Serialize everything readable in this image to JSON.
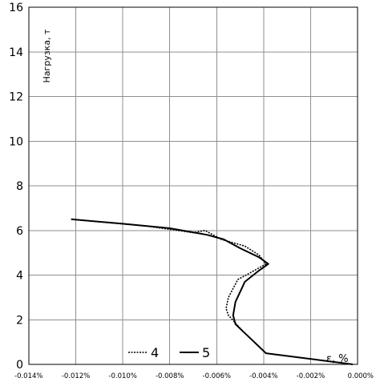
{
  "chart_data": {
    "type": "line",
    "ylabel": "Нагрузка, т",
    "xlabel": "ε, %",
    "xlim": [
      -0.014,
      0.0
    ],
    "ylim": [
      0,
      16
    ],
    "x_ticks": [
      -0.014,
      -0.012,
      -0.01,
      -0.008,
      -0.006,
      -0.004,
      -0.002,
      0.0
    ],
    "x_tick_labels": [
      "-0.014%",
      "-0.012%",
      "-0.010%",
      "-0.008%",
      "-0.006%",
      "-0.004%",
      "-0.002%",
      "0.000%"
    ],
    "y_ticks": [
      0,
      2,
      4,
      6,
      8,
      10,
      12,
      14,
      16
    ],
    "y_tick_labels": [
      "0",
      "2",
      "4",
      "6",
      "8",
      "10",
      "12",
      "14",
      "16"
    ],
    "grid": true,
    "legend_position": "bottom-center",
    "series": [
      {
        "name": "4",
        "style": "dotted",
        "color": "#000000",
        "points": [
          [
            -0.0002,
            0.0
          ],
          [
            -0.0039,
            0.5
          ],
          [
            -0.0049,
            1.5
          ],
          [
            -0.0055,
            2.2
          ],
          [
            -0.0056,
            2.5
          ],
          [
            -0.0055,
            3.0
          ],
          [
            -0.0051,
            3.8
          ],
          [
            -0.0044,
            4.2
          ],
          [
            -0.0039,
            4.5
          ],
          [
            -0.0042,
            4.9
          ],
          [
            -0.0048,
            5.3
          ],
          [
            -0.0058,
            5.6
          ],
          [
            -0.0065,
            6.0
          ],
          [
            -0.007,
            5.9
          ],
          [
            -0.009,
            6.2
          ],
          [
            -0.0122,
            6.5
          ]
        ]
      },
      {
        "name": "5",
        "style": "solid",
        "color": "#000000",
        "points": [
          [
            -0.0002,
            0.0
          ],
          [
            -0.0039,
            0.5
          ],
          [
            -0.0047,
            1.3
          ],
          [
            -0.0052,
            1.8
          ],
          [
            -0.0053,
            2.2
          ],
          [
            -0.0052,
            2.8
          ],
          [
            -0.0048,
            3.7
          ],
          [
            -0.0042,
            4.2
          ],
          [
            -0.0038,
            4.5
          ],
          [
            -0.0042,
            4.8
          ],
          [
            -0.005,
            5.2
          ],
          [
            -0.0057,
            5.6
          ],
          [
            -0.0064,
            5.8
          ],
          [
            -0.008,
            6.1
          ],
          [
            -0.01,
            6.3
          ],
          [
            -0.0122,
            6.5
          ]
        ]
      }
    ]
  }
}
